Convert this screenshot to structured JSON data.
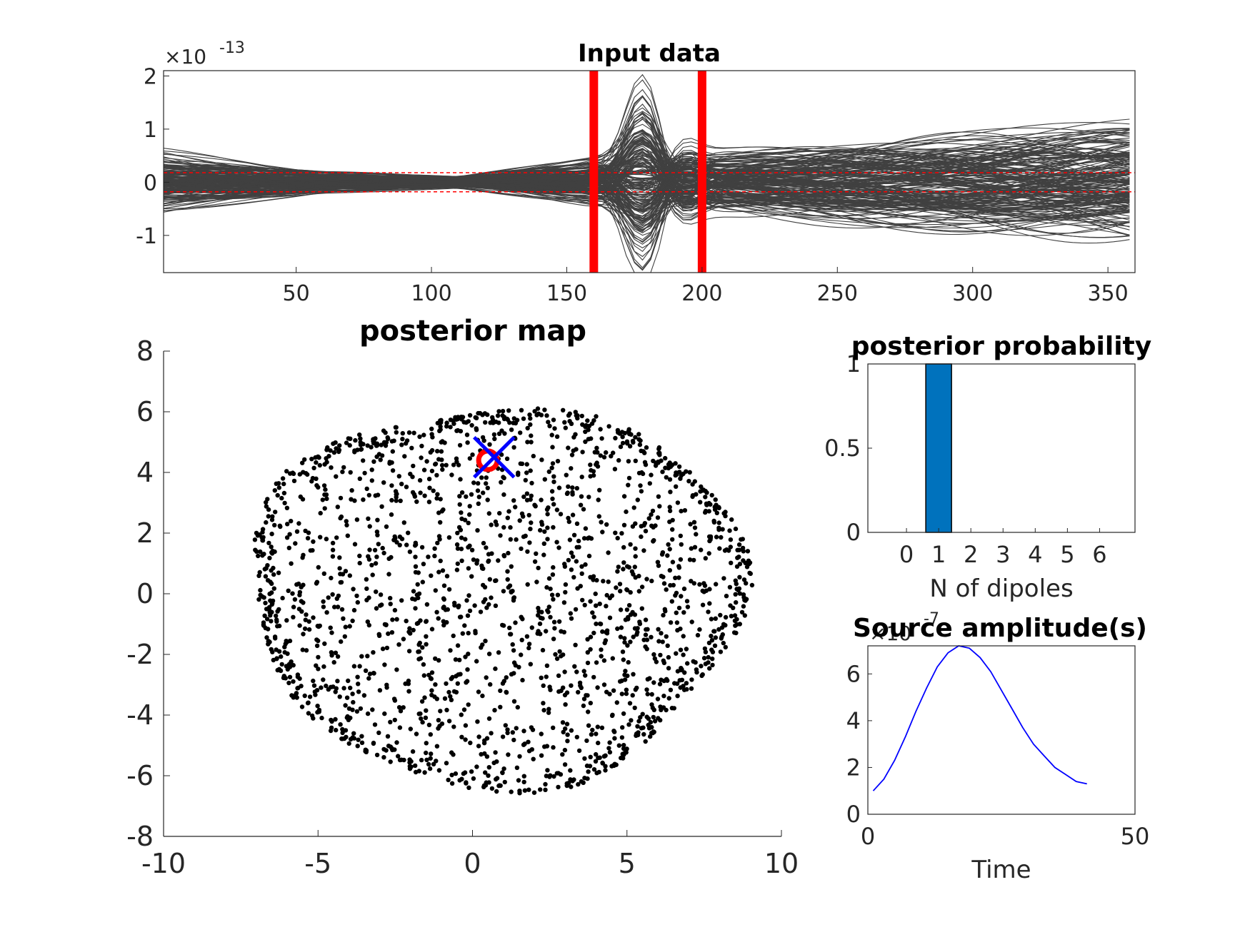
{
  "colors": {
    "traces": "#404040",
    "window_marker": "#ff0000",
    "threshold": "#ff0000",
    "dots": "#000000",
    "estimated_source": "#ff0000",
    "true_source": "#0000ff",
    "bar": "#0072bd",
    "amplitude_line": "#0000ff",
    "axes": "#262626"
  },
  "chart_data": [
    {
      "type": "line",
      "title": "Input data",
      "xlabel": "",
      "ylabel": "",
      "y_exponent_label": "×10",
      "y_exponent_power": "-13",
      "xlim": [
        1,
        360
      ],
      "ylim": [
        -1.7,
        2.1
      ],
      "x_ticks": [
        "50",
        "100",
        "150",
        "200",
        "250",
        "300",
        "350"
      ],
      "y_ticks": [
        "-1",
        "0",
        "1",
        "2"
      ],
      "y_tick_values": [
        -1,
        0,
        1,
        2
      ],
      "n_traces": 200,
      "vertical_markers_x": [
        160,
        200
      ],
      "threshold_lines_y": [
        0.18,
        -0.18
      ],
      "peak_x": 178,
      "peak_amplitude": 1.9
    },
    {
      "type": "scatter",
      "title": "posterior map",
      "xlabel": "",
      "ylabel": "",
      "xlim": [
        -10,
        10
      ],
      "ylim": [
        -8,
        8
      ],
      "x_ticks": [
        "-10",
        "-5",
        "0",
        "5",
        "10"
      ],
      "y_ticks": [
        "-8",
        "-6",
        "-4",
        "-2",
        "0",
        "2",
        "4",
        "6",
        "8"
      ],
      "n_points": 2000,
      "cloud_x_range": [
        -7.2,
        8.8
      ],
      "cloud_y_range": [
        -6.3,
        6.3
      ],
      "estimated_source": {
        "marker": "circle",
        "x": 0.5,
        "y": 4.4
      },
      "true_source": {
        "marker": "x",
        "x": 0.7,
        "y": 4.5
      }
    },
    {
      "type": "bar",
      "title": "posterior probability",
      "xlabel": "N of dipoles",
      "ylabel": "",
      "categories": [
        "0",
        "1",
        "2",
        "3",
        "4",
        "5",
        "6"
      ],
      "values": [
        0,
        1,
        0,
        0,
        0,
        0,
        0
      ],
      "xlim": [
        -1.2,
        7.1
      ],
      "ylim": [
        0,
        1
      ],
      "y_ticks": [
        "0",
        "0.5",
        "1"
      ]
    },
    {
      "type": "line",
      "title": "Source amplitude(s)",
      "xlabel": "Time",
      "ylabel": "",
      "y_exponent_label": "×10",
      "y_exponent_power": "-7",
      "xlim": [
        0,
        50
      ],
      "ylim": [
        0,
        7.2
      ],
      "x_ticks": [
        "0",
        "50"
      ],
      "y_ticks": [
        "0",
        "2",
        "4",
        "6"
      ],
      "series": [
        {
          "x": [
            1,
            3,
            5,
            7,
            9,
            11,
            13,
            15,
            17,
            19,
            21,
            23,
            25,
            27,
            29,
            31,
            33,
            35,
            37,
            39,
            41
          ],
          "y": [
            1.0,
            1.5,
            2.3,
            3.3,
            4.4,
            5.4,
            6.3,
            6.9,
            7.2,
            7.1,
            6.7,
            6.1,
            5.3,
            4.5,
            3.7,
            3.0,
            2.5,
            2.0,
            1.7,
            1.4,
            1.3
          ]
        }
      ]
    }
  ]
}
